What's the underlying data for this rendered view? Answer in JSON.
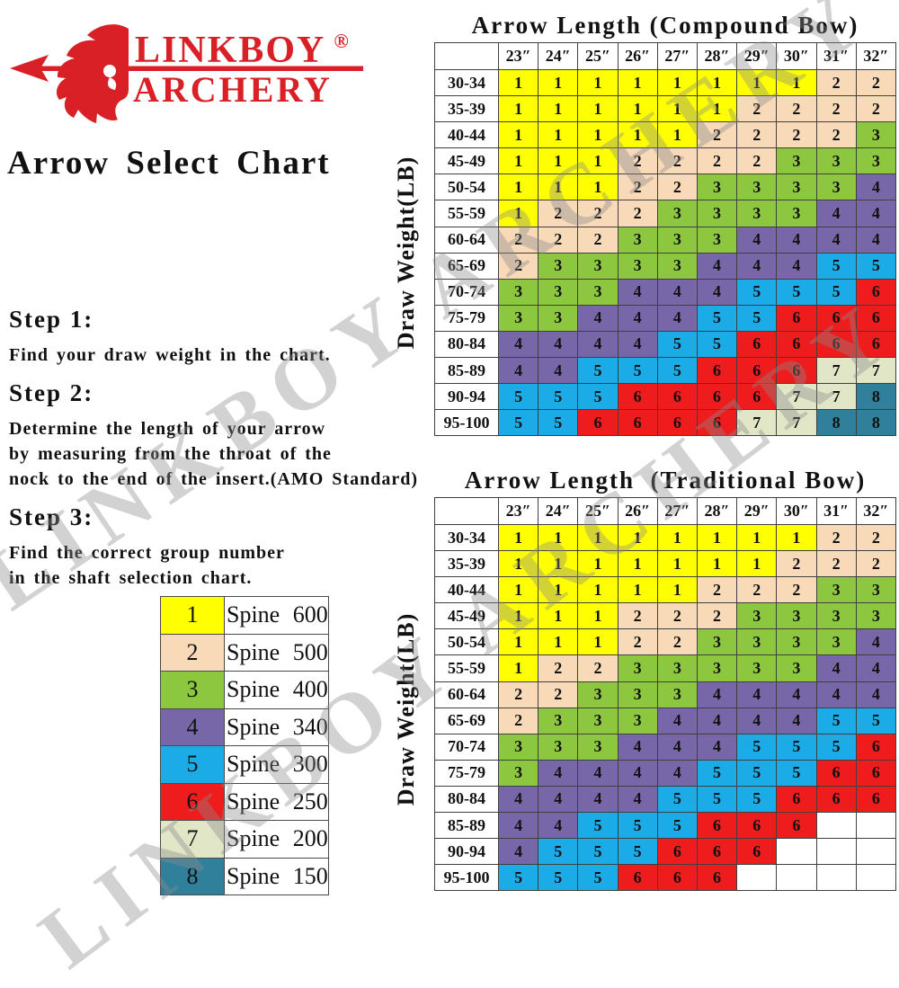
{
  "colors": {
    "brand_red": "#D92027",
    "text": "#111111",
    "grid_border": "#3F3F3F",
    "watermark": "#8A8A8A"
  },
  "brand": {
    "name_top": "LINKBOY",
    "registered": "®",
    "name_bottom": "ARCHERY"
  },
  "title": "Arrow Select Chart",
  "steps": [
    {
      "heading": "Step 1:",
      "lines": [
        "Find your draw weight in the chart."
      ]
    },
    {
      "heading": "Step 2:",
      "lines": [
        "Determine the length of your arrow",
        "by measuring from the throat of the",
        "nock to the end of the insert.(AMO Standard)"
      ]
    },
    {
      "heading": "Step 3:",
      "lines": [
        "Find the correct group number",
        "in the shaft selection chart."
      ]
    }
  ],
  "legend": {
    "items": [
      {
        "group": "1",
        "color": "#FFFF00",
        "label": "Spine 600"
      },
      {
        "group": "2",
        "color": "#F8D9B8",
        "label": "Spine 500"
      },
      {
        "group": "3",
        "color": "#8DC63F",
        "label": "Spine 400"
      },
      {
        "group": "4",
        "color": "#7767A9",
        "label": "Spine 340"
      },
      {
        "group": "5",
        "color": "#1BACE8",
        "label": "Spine 300"
      },
      {
        "group": "6",
        "color": "#EE1C1C",
        "label": "Spine 250"
      },
      {
        "group": "7",
        "color": "#E0E6C6",
        "label": "Spine 200"
      },
      {
        "group": "8",
        "color": "#31809B",
        "label": "Spine 150"
      }
    ]
  },
  "watermark": {
    "text": "LINKBOY ARCHERY"
  },
  "chart_data": [
    {
      "type": "heatmap",
      "title": "Arrow Length (Compound Bow)",
      "ylabel": "Draw Weight(LB)",
      "columns": [
        "23″",
        "24″",
        "25″",
        "26″",
        "27″",
        "28″",
        "29″",
        "30″",
        "31″",
        "32″"
      ],
      "rows": [
        "30-34",
        "35-39",
        "40-44",
        "45-49",
        "50-54",
        "55-59",
        "60-64",
        "65-69",
        "70-74",
        "75-79",
        "80-84",
        "85-89",
        "90-94",
        "95-100"
      ],
      "values": [
        [
          1,
          1,
          1,
          1,
          1,
          1,
          1,
          1,
          2,
          2
        ],
        [
          1,
          1,
          1,
          1,
          1,
          1,
          2,
          2,
          2,
          2
        ],
        [
          1,
          1,
          1,
          1,
          1,
          2,
          2,
          2,
          2,
          3
        ],
        [
          1,
          1,
          1,
          2,
          2,
          2,
          2,
          3,
          3,
          3
        ],
        [
          1,
          1,
          1,
          2,
          2,
          3,
          3,
          3,
          3,
          4
        ],
        [
          1,
          2,
          2,
          2,
          3,
          3,
          3,
          3,
          4,
          4
        ],
        [
          2,
          2,
          2,
          3,
          3,
          3,
          4,
          4,
          4,
          4
        ],
        [
          2,
          3,
          3,
          3,
          3,
          4,
          4,
          4,
          5,
          5
        ],
        [
          3,
          3,
          3,
          4,
          4,
          4,
          5,
          5,
          5,
          6
        ],
        [
          3,
          3,
          4,
          4,
          4,
          5,
          5,
          6,
          6,
          6
        ],
        [
          4,
          4,
          4,
          4,
          5,
          5,
          6,
          6,
          6,
          6
        ],
        [
          4,
          4,
          5,
          5,
          5,
          6,
          6,
          6,
          7,
          7
        ],
        [
          5,
          5,
          5,
          6,
          6,
          6,
          6,
          7,
          7,
          8
        ],
        [
          5,
          5,
          6,
          6,
          6,
          6,
          7,
          7,
          8,
          8
        ]
      ]
    },
    {
      "type": "heatmap",
      "title": "Arrow Length  (Traditional Bow)",
      "ylabel": "Draw Weight(LB)",
      "columns": [
        "23″",
        "24″",
        "25″",
        "26″",
        "27″",
        "28″",
        "29″",
        "30″",
        "31″",
        "32″"
      ],
      "rows": [
        "30-34",
        "35-39",
        "40-44",
        "45-49",
        "50-54",
        "55-59",
        "60-64",
        "65-69",
        "70-74",
        "75-79",
        "80-84",
        "85-89",
        "90-94",
        "95-100"
      ],
      "values": [
        [
          1,
          1,
          1,
          1,
          1,
          1,
          1,
          1,
          2,
          2
        ],
        [
          1,
          1,
          1,
          1,
          1,
          1,
          1,
          2,
          2,
          2
        ],
        [
          1,
          1,
          1,
          1,
          1,
          2,
          2,
          2,
          3,
          3
        ],
        [
          1,
          1,
          1,
          2,
          2,
          2,
          3,
          3,
          3,
          3
        ],
        [
          1,
          1,
          1,
          2,
          2,
          3,
          3,
          3,
          3,
          4
        ],
        [
          1,
          2,
          2,
          3,
          3,
          3,
          3,
          3,
          4,
          4
        ],
        [
          2,
          2,
          3,
          3,
          3,
          4,
          4,
          4,
          4,
          4
        ],
        [
          2,
          3,
          3,
          3,
          4,
          4,
          4,
          4,
          5,
          5
        ],
        [
          3,
          3,
          3,
          4,
          4,
          4,
          5,
          5,
          5,
          6
        ],
        [
          3,
          4,
          4,
          4,
          4,
          5,
          5,
          5,
          6,
          6
        ],
        [
          4,
          4,
          4,
          4,
          5,
          5,
          5,
          6,
          6,
          6
        ],
        [
          4,
          4,
          5,
          5,
          5,
          6,
          6,
          6,
          null,
          null
        ],
        [
          4,
          5,
          5,
          5,
          6,
          6,
          6,
          null,
          null,
          null
        ],
        [
          5,
          5,
          5,
          6,
          6,
          6,
          null,
          null,
          null,
          null
        ]
      ]
    }
  ]
}
